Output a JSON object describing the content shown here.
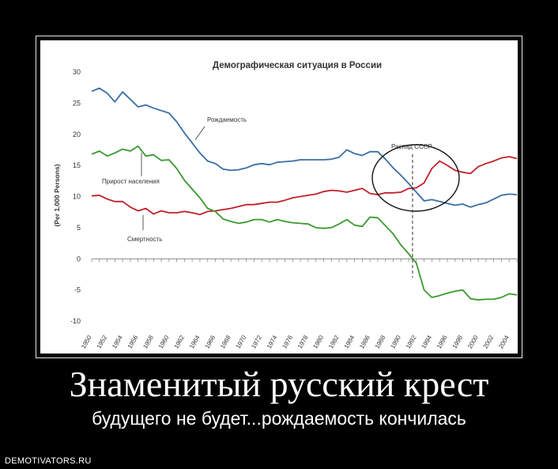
{
  "poster": {
    "headline": "Знаменитый русский крест",
    "subline": "будущего не будет...рождаемость кончилась",
    "watermark": "DEMOTIVATORS.RU"
  },
  "chart_data": {
    "type": "line",
    "title": "Демографическая ситуация в России",
    "ylabel": "(Per 1,000 Persons)",
    "xlabel": "",
    "ylim": [
      -10,
      30
    ],
    "yticks": [
      30,
      25,
      20,
      15,
      10,
      5,
      0,
      -5,
      -10
    ],
    "xticks": [
      "1950",
      "1952",
      "1954",
      "1956",
      "1958",
      "1960",
      "1962",
      "1964",
      "1966",
      "1968",
      "1970",
      "1972",
      "1974",
      "1976",
      "1978",
      "1980",
      "1982",
      "1984",
      "1986",
      "1988",
      "1990",
      "1992",
      "1994",
      "1996",
      "1998",
      "2000",
      "2002",
      "2004"
    ],
    "x": [
      1950,
      1951,
      1952,
      1953,
      1954,
      1955,
      1956,
      1957,
      1958,
      1959,
      1960,
      1961,
      1962,
      1963,
      1964,
      1965,
      1966,
      1967,
      1968,
      1969,
      1970,
      1971,
      1972,
      1973,
      1974,
      1975,
      1976,
      1977,
      1978,
      1979,
      1980,
      1981,
      1982,
      1983,
      1984,
      1985,
      1986,
      1987,
      1988,
      1989,
      1990,
      1991,
      1992,
      1993,
      1994,
      1995,
      1996,
      1997,
      1998,
      1999,
      2000,
      2001,
      2002,
      2003,
      2004,
      2005
    ],
    "series": [
      {
        "name": "Рождаемость",
        "color": "#3a6ea5",
        "values": [
          26.9,
          27.4,
          26.6,
          25.2,
          26.8,
          25.6,
          24.4,
          24.7,
          24.2,
          23.8,
          23.4,
          22.0,
          20.2,
          18.6,
          17.0,
          15.7,
          15.3,
          14.4,
          14.2,
          14.3,
          14.6,
          15.1,
          15.3,
          15.1,
          15.5,
          15.6,
          15.7,
          15.9,
          15.9,
          15.9,
          15.9,
          16.0,
          16.3,
          17.5,
          16.9,
          16.6,
          17.2,
          17.2,
          16.0,
          14.6,
          13.4,
          12.1,
          10.7,
          9.3,
          9.5,
          9.2,
          8.9,
          8.6,
          8.8,
          8.3,
          8.7,
          9.0,
          9.6,
          10.2,
          10.4,
          10.3
        ]
      },
      {
        "name": "Смертность",
        "color": "#c0202b",
        "values": [
          10.1,
          10.2,
          9.6,
          9.2,
          9.2,
          8.3,
          7.7,
          8.1,
          7.2,
          7.7,
          7.4,
          7.4,
          7.6,
          7.4,
          7.1,
          7.6,
          7.7,
          7.9,
          8.1,
          8.4,
          8.7,
          8.7,
          8.9,
          9.1,
          9.1,
          9.4,
          9.8,
          10.0,
          10.2,
          10.4,
          10.8,
          11.0,
          10.9,
          10.7,
          11.0,
          11.3,
          10.5,
          10.3,
          10.6,
          10.6,
          10.7,
          11.3,
          11.4,
          12.2,
          14.5,
          15.7,
          15.0,
          14.2,
          13.9,
          13.7,
          14.8,
          15.3,
          15.7,
          16.2,
          16.4,
          16.1
        ]
      },
      {
        "name": "Прирост населения",
        "color": "#3a9a2e",
        "values": [
          16.8,
          17.3,
          16.5,
          17.0,
          17.6,
          17.3,
          18.1,
          16.5,
          16.7,
          15.8,
          15.9,
          14.5,
          12.6,
          11.2,
          9.8,
          8.1,
          7.6,
          6.4,
          6.0,
          5.7,
          5.9,
          6.3,
          6.3,
          5.9,
          6.3,
          6.0,
          5.8,
          5.7,
          5.6,
          5.0,
          4.9,
          5.0,
          5.6,
          6.3,
          5.4,
          5.2,
          6.7,
          6.6,
          5.3,
          4.0,
          2.2,
          0.8,
          -0.7,
          -5.0,
          -6.2,
          -5.9,
          -5.5,
          -5.2,
          -5.0,
          -6.4,
          -6.6,
          -6.5,
          -6.5,
          -6.2,
          -5.6,
          -5.8
        ]
      }
    ],
    "annotations": [
      {
        "text": "Рождаемость"
      },
      {
        "text": "Прирост населения"
      },
      {
        "text": "Смертность"
      },
      {
        "text": "Распад СССР",
        "x": 1991.5
      }
    ],
    "grid": false,
    "legend": "none"
  }
}
